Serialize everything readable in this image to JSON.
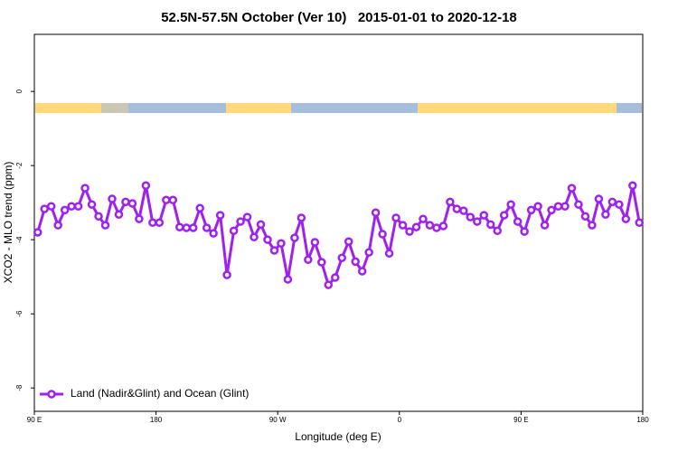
{
  "chart_data": {
    "type": "line",
    "title": "52.5N-57.5N October (Ver 10)   2015-01-01 to 2020-12-18",
    "x_label": "Longitude (deg E)",
    "y_label": "XCO2 - MLO trend (ppm)",
    "xlim": [
      90,
      540
    ],
    "xticks": [
      {
        "value": 90,
        "label": "90 E"
      },
      180,
      {
        "value": 270,
        "label": "90 W"
      },
      {
        "value": 360,
        "label": "0"
      },
      {
        "value": 450,
        "label": "90 E"
      },
      {
        "value": 540,
        "label": "180"
      }
    ],
    "ylim": [
      -8.63,
      1.54
    ],
    "yticks": [
      0,
      -2,
      -4,
      -6,
      -8
    ],
    "grid": false,
    "legend": "bottom-left",
    "x": [
      92.5,
      97.5,
      102.5,
      107.5,
      112.5,
      117.5,
      122.5,
      127.5,
      132.5,
      137.5,
      142.5,
      147.5,
      152.5,
      157.5,
      162.5,
      167.5,
      172.5,
      177.5,
      182.5,
      187.5,
      192.5,
      197.5,
      202.5,
      207.5,
      212.5,
      217.5,
      222.5,
      227.5,
      232.5,
      237.5,
      242.5,
      247.5,
      252.5,
      257.5,
      262.5,
      267.5,
      272.5,
      277.5,
      282.5,
      287.5,
      292.5,
      297.5,
      302.5,
      307.5,
      312.5,
      317.5,
      322.5,
      327.5,
      332.5,
      337.5,
      342.5,
      347.5,
      352.5,
      357.5,
      362.5,
      367.5,
      372.5,
      377.5,
      382.5,
      387.5,
      392.5,
      397.5,
      402.5,
      407.5,
      412.5,
      417.5,
      422.5,
      427.5,
      432.5,
      437.5,
      442.5,
      447.5,
      452.5,
      457.5,
      462.5,
      467.5,
      472.5,
      477.5,
      482.5,
      487.5,
      492.5,
      497.5,
      502.5,
      507.5,
      512.5,
      517.5,
      522.5,
      527.5,
      532.5,
      537.5
    ],
    "series": [
      {
        "name": "Land (Nadir&Glint) and Ocean (Glint)",
        "color": "#a020f0",
        "values": [
          -3.8,
          -3.17,
          -3.1,
          -3.61,
          -3.2,
          -3.1,
          -3.1,
          -2.61,
          -3.05,
          -3.37,
          -3.61,
          -2.9,
          -3.32,
          -2.98,
          -3.02,
          -3.44,
          -2.54,
          -3.54,
          -3.54,
          -2.93,
          -2.93,
          -3.66,
          -3.68,
          -3.68,
          -3.15,
          -3.68,
          -3.83,
          -3.34,
          -4.95,
          -3.76,
          -3.51,
          -3.39,
          -3.93,
          -3.59,
          -4.0,
          -4.29,
          -4.1,
          -5.07,
          -3.95,
          -3.41,
          -4.54,
          -4.07,
          -4.61,
          -5.22,
          -5.02,
          -4.49,
          -4.05,
          -4.59,
          -4.85,
          -4.34,
          -3.27,
          -3.85,
          -4.37,
          -3.41,
          -3.61,
          -3.78,
          -3.66,
          -3.44,
          -3.61,
          -3.68,
          -3.63,
          -2.98,
          -3.17,
          -3.22,
          -3.39,
          -3.51,
          -3.34,
          -3.59,
          -3.76,
          -3.34,
          -3.05,
          -3.51,
          -3.78,
          -3.2,
          -3.1,
          -3.61,
          -3.2,
          -3.1,
          -3.1,
          -2.61,
          -3.05,
          -3.37,
          -3.61,
          -2.9,
          -3.32,
          -2.98,
          -3.05,
          -3.44,
          -2.54,
          -3.54
        ]
      }
    ]
  }
}
